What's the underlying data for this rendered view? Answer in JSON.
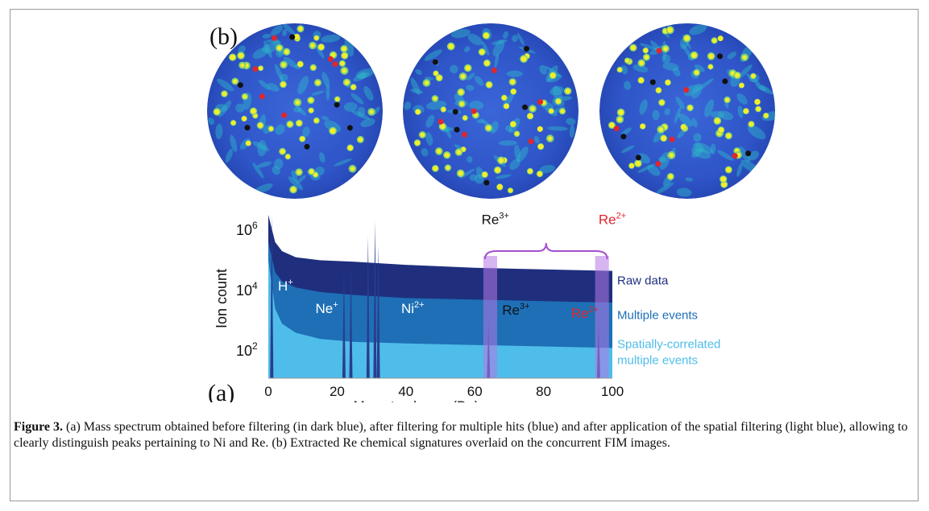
{
  "panel_labels": {
    "a": "(a)",
    "b": "(b)"
  },
  "caption": {
    "label": "Figure 3.",
    "text": "(a) Mass spectrum obtained before filtering (in dark blue), after filtering for multiple hits (blue) and after application of the spatial filtering (light blue), allowing to clearly distinguish peaks pertaining to Ni and Re. (b) Extracted Re chemical signatures overlaid on the concurrent FIM images."
  },
  "colors": {
    "raw": "#1f2f7e",
    "multiple": "#1e6fb6",
    "spatial": "#4fbde9",
    "re3_text": "#111111",
    "re2_text": "#e0262c",
    "bracket": "#a64fd0",
    "highlight": "#b478e6"
  },
  "fim_images": [
    {
      "id": "fim-1"
    },
    {
      "id": "fim-2"
    },
    {
      "id": "fim-3"
    }
  ],
  "chart_data": {
    "type": "area",
    "xlabel": "Mass-to-charge (Da)",
    "ylabel": "Ion count",
    "xlim": [
      0,
      100
    ],
    "ylim_log10": [
      1.1,
      6.9
    ],
    "x_ticks": [
      0,
      20,
      40,
      60,
      80,
      100
    ],
    "y_ticks": [
      {
        "exp": 6,
        "label": "10",
        "sup": "6"
      },
      {
        "exp": 4,
        "label": "10",
        "sup": "4"
      },
      {
        "exp": 2,
        "label": "10",
        "sup": "2"
      }
    ],
    "series": [
      {
        "name": "Raw data",
        "color": "#1f2f7e",
        "x": [
          0,
          2,
          4,
          8,
          15,
          25,
          40,
          60,
          80,
          100
        ],
        "log10_y": [
          6.5,
          5.6,
          5.3,
          5.1,
          5.0,
          4.95,
          4.85,
          4.75,
          4.7,
          4.65
        ]
      },
      {
        "name": "Multiple events",
        "color": "#1e6fb6",
        "x": [
          0,
          2,
          4,
          8,
          15,
          25,
          40,
          60,
          80,
          100
        ],
        "log10_y": [
          5.6,
          4.6,
          4.3,
          4.1,
          3.95,
          3.85,
          3.75,
          3.7,
          3.65,
          3.6
        ]
      },
      {
        "name": "Spatially-correlated\nmultiple events",
        "color": "#4fbde9",
        "x": [
          0,
          2,
          4,
          8,
          15,
          25,
          40,
          60,
          80,
          100
        ],
        "log10_y": [
          5.0,
          3.4,
          2.9,
          2.6,
          2.4,
          2.3,
          2.25,
          2.2,
          2.15,
          2.1
        ]
      }
    ],
    "peaks": [
      {
        "x": 1,
        "log10_y": 6.5
      },
      {
        "x": 22,
        "log10_y": 4.7
      },
      {
        "x": 24,
        "log10_y": 4.9
      },
      {
        "x": 29,
        "log10_y": 5.8
      },
      {
        "x": 31,
        "log10_y": 6.3
      },
      {
        "x": 32,
        "log10_y": 5.5
      },
      {
        "x": 64,
        "log10_y": 3.0
      },
      {
        "x": 96,
        "log10_y": 3.2
      }
    ],
    "highlight_bands": [
      [
        62.5,
        66.5
      ],
      [
        95,
        99
      ]
    ],
    "annotations": [
      {
        "text": "H",
        "sup": "+",
        "x": 5,
        "log10_y": 4.0,
        "color": "#ffffff"
      },
      {
        "text": "Ne",
        "sup": "+",
        "x": 17,
        "log10_y": 3.25,
        "color": "#ffffff"
      },
      {
        "text": "Ni",
        "sup": "2+",
        "x": 42,
        "log10_y": 3.25,
        "color": "#ffffff"
      },
      {
        "text": "Re",
        "sup": "3+",
        "x": 72,
        "log10_y": 3.2,
        "color": "#111111"
      },
      {
        "text": "Re",
        "sup": "2+",
        "x": 92,
        "log10_y": 3.1,
        "color": "#e0262c"
      },
      {
        "text": "Re",
        "sup": "3+",
        "x": 66,
        "log10_y": 6.2,
        "color": "#111111"
      },
      {
        "text": "Re",
        "sup": "2+",
        "x": 100,
        "log10_y": 6.2,
        "color": "#e0262c"
      }
    ]
  }
}
